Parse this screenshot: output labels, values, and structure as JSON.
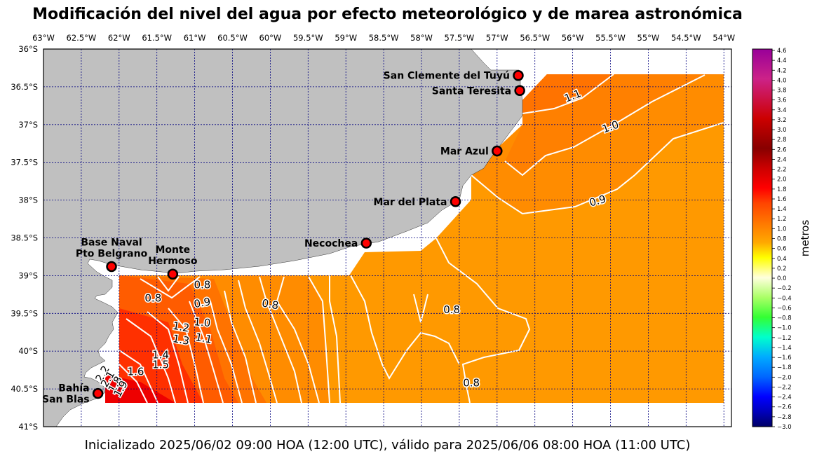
{
  "title": "Modificación del nivel del agua por efecto meteorológico y de marea astronómica",
  "footer": "Inicializado 2025/06/02 09:00 HOA (12:00 UTC), válido para 2025/06/06 08:00 HOA (11:00 UTC)",
  "map": {
    "lon_range": [
      -63.0,
      -53.9
    ],
    "lat_range": [
      -41.0,
      -36.0
    ],
    "lon_ticks": [
      {
        "v": -63.0,
        "label": "63°W"
      },
      {
        "v": -62.5,
        "label": "62.5°W"
      },
      {
        "v": -62.0,
        "label": "62°W"
      },
      {
        "v": -61.5,
        "label": "61.5°W"
      },
      {
        "v": -61.0,
        "label": "61°W"
      },
      {
        "v": -60.5,
        "label": "60.5°W"
      },
      {
        "v": -60.0,
        "label": "60°W"
      },
      {
        "v": -59.5,
        "label": "59.5°W"
      },
      {
        "v": -59.0,
        "label": "59°W"
      },
      {
        "v": -58.5,
        "label": "58.5°W"
      },
      {
        "v": -58.0,
        "label": "58°W"
      },
      {
        "v": -57.5,
        "label": "57.5°W"
      },
      {
        "v": -57.0,
        "label": "57°W"
      },
      {
        "v": -56.5,
        "label": "56.5°W"
      },
      {
        "v": -56.0,
        "label": "56°W"
      },
      {
        "v": -55.5,
        "label": "55.5°W"
      },
      {
        "v": -55.0,
        "label": "55°W"
      },
      {
        "v": -54.5,
        "label": "54.5°W"
      },
      {
        "v": -54.0,
        "label": "54°W"
      }
    ],
    "lat_ticks": [
      {
        "v": -36.0,
        "label": "36°S"
      },
      {
        "v": -36.5,
        "label": "36.5°S"
      },
      {
        "v": -37.0,
        "label": "37°S"
      },
      {
        "v": -37.5,
        "label": "37.5°S"
      },
      {
        "v": -38.0,
        "label": "38°S"
      },
      {
        "v": -38.5,
        "label": "38.5°S"
      },
      {
        "v": -39.0,
        "label": "39°S"
      },
      {
        "v": -39.5,
        "label": "39.5°S"
      },
      {
        "v": -40.0,
        "label": "40°S"
      },
      {
        "v": -40.5,
        "label": "40.5°S"
      },
      {
        "v": -41.0,
        "label": "41°S"
      }
    ],
    "stations": [
      {
        "name": "San Clemente del Tuyú",
        "lon": -56.72,
        "lat": -36.35,
        "label_side": "left"
      },
      {
        "name": "Santa Teresita",
        "lon": -56.7,
        "lat": -36.55,
        "label_side": "left"
      },
      {
        "name": "Mar Azul",
        "lon": -57.0,
        "lat": -37.35,
        "label_side": "left"
      },
      {
        "name": "Mar del Plata",
        "lon": -57.55,
        "lat": -38.02,
        "label_side": "left"
      },
      {
        "name": "Necochea",
        "lon": -58.73,
        "lat": -38.57,
        "label_side": "left"
      },
      {
        "name": "Base Naval\nPto Belgrano",
        "lon": -62.1,
        "lat": -38.88,
        "label_side": "above"
      },
      {
        "name": "Monte\nHermoso",
        "lon": -61.29,
        "lat": -38.98,
        "label_side": "above"
      },
      {
        "name": "Bahía\nSan Blas",
        "lon": -62.28,
        "lat": -40.56,
        "label_side": "left"
      }
    ],
    "contour_labels": [
      {
        "text": "1.1",
        "lon": -56.0,
        "lat": -36.62,
        "angle": -22
      },
      {
        "text": "1.0",
        "lon": -55.5,
        "lat": -37.03,
        "angle": -20
      },
      {
        "text": "0.9",
        "lon": -55.67,
        "lat": -38.01,
        "angle": -15
      },
      {
        "text": "0.8",
        "lon": -57.6,
        "lat": -39.45,
        "angle": 0
      },
      {
        "text": "0.8",
        "lon": -60.9,
        "lat": -39.12,
        "angle": 0
      },
      {
        "text": "0.9",
        "lon": -60.9,
        "lat": -39.36,
        "angle": -10
      },
      {
        "text": "0.8",
        "lon": -60.0,
        "lat": -39.38,
        "angle": 10
      },
      {
        "text": "0.8",
        "lon": -61.55,
        "lat": -39.3,
        "angle": 0
      },
      {
        "text": "1.0",
        "lon": -60.9,
        "lat": -39.62,
        "angle": 5
      },
      {
        "text": "1.2",
        "lon": -61.18,
        "lat": -39.68,
        "angle": 10
      },
      {
        "text": "1.1",
        "lon": -60.88,
        "lat": -39.83,
        "angle": 10
      },
      {
        "text": "1.3",
        "lon": -61.18,
        "lat": -39.85,
        "angle": 10
      },
      {
        "text": "1.4",
        "lon": -61.45,
        "lat": -40.05,
        "angle": 0
      },
      {
        "text": "1.5",
        "lon": -61.45,
        "lat": -40.18,
        "angle": 0
      },
      {
        "text": "1.6",
        "lon": -61.78,
        "lat": -40.27,
        "angle": 0
      },
      {
        "text": "0.8",
        "lon": -57.34,
        "lat": -40.42,
        "angle": 0
      },
      {
        "text": "2.2",
        "lon": -62.22,
        "lat": -40.3,
        "angle": -60
      },
      {
        "text": "2.1",
        "lon": -62.15,
        "lat": -40.37,
        "angle": -60
      },
      {
        "text": "1.8",
        "lon": -62.05,
        "lat": -40.44,
        "angle": -60
      },
      {
        "text": "1.9",
        "lon": -61.98,
        "lat": -40.5,
        "angle": -60
      }
    ]
  },
  "colorbar": {
    "title": "metros",
    "range": [
      -3.0,
      4.6
    ],
    "tick_labels": [
      "4.6",
      "4.4",
      "4.2",
      "4.0",
      "3.8",
      "3.6",
      "3.4",
      "3.2",
      "3.0",
      "2.8",
      "2.6",
      "2.4",
      "2.2",
      "2.0",
      "1.8",
      "1.6",
      "1.4",
      "1.2",
      "1.0",
      "0.8",
      "0.6",
      "0.4",
      "0.2",
      "0.0",
      "−0.2",
      "−0.4",
      "−0.6",
      "−0.8",
      "−1.0",
      "−1.2",
      "−1.4",
      "−1.6",
      "−1.8",
      "−2.0",
      "−2.2",
      "−2.4",
      "−2.6",
      "−2.8",
      "−3.0"
    ],
    "stops": [
      {
        "v": 4.6,
        "color": "#990099"
      },
      {
        "v": 4.0,
        "color": "#cc2288"
      },
      {
        "v": 3.2,
        "color": "#cc0000"
      },
      {
        "v": 2.6,
        "color": "#880000"
      },
      {
        "v": 2.2,
        "color": "#cc0000"
      },
      {
        "v": 1.8,
        "color": "#ff0000"
      },
      {
        "v": 1.5,
        "color": "#ff4400"
      },
      {
        "v": 1.1,
        "color": "#ff7700"
      },
      {
        "v": 0.7,
        "color": "#ffaa00"
      },
      {
        "v": 0.4,
        "color": "#ffff00"
      },
      {
        "v": 0.0,
        "color": "#ffffdd"
      },
      {
        "v": -0.4,
        "color": "#aaff66"
      },
      {
        "v": -0.8,
        "color": "#33ff33"
      },
      {
        "v": -1.2,
        "color": "#00ffcc"
      },
      {
        "v": -1.6,
        "color": "#00aaff"
      },
      {
        "v": -2.0,
        "color": "#0066ff"
      },
      {
        "v": -2.4,
        "color": "#0000ff"
      },
      {
        "v": -2.7,
        "color": "#0000bb"
      },
      {
        "v": -3.0,
        "color": "#000066"
      }
    ]
  },
  "colors": {
    "land": "#c0c0c0",
    "grid": "#000080",
    "station_fill": "#ff0000",
    "contour": "#ffffff",
    "level_0_8": "#ff9900",
    "level_0_9": "#ff8c00",
    "level_1_0": "#ff8000",
    "level_1_1": "#ff7300",
    "level_1_3": "#ff5c00",
    "level_1_6": "#ff3000",
    "level_2_0": "#ee0000"
  }
}
